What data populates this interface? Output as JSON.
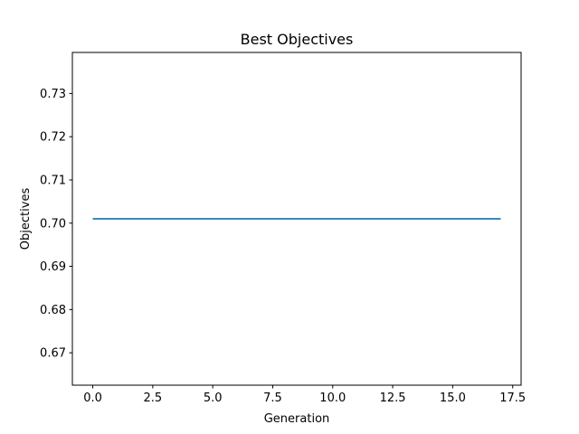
{
  "chart_data": {
    "type": "line",
    "title": "Best Objectives",
    "xlabel": "Generation",
    "ylabel": "Objectives",
    "xlim": [
      -0.85,
      17.85
    ],
    "ylim": [
      0.6625,
      0.7395
    ],
    "xticks": [
      0.0,
      2.5,
      5.0,
      7.5,
      10.0,
      12.5,
      15.0,
      17.5
    ],
    "xtick_labels": [
      "0.0",
      "2.5",
      "5.0",
      "7.5",
      "10.0",
      "12.5",
      "15.0",
      "17.5"
    ],
    "yticks": [
      0.67,
      0.68,
      0.69,
      0.7,
      0.71,
      0.72,
      0.73
    ],
    "ytick_labels": [
      "0.67",
      "0.68",
      "0.69",
      "0.70",
      "0.71",
      "0.72",
      "0.73"
    ],
    "grid": false,
    "series": [
      {
        "color": "#1f77b4",
        "x": [
          0,
          1,
          2,
          3,
          4,
          5,
          6,
          7,
          8,
          9,
          10,
          11,
          12,
          13,
          14,
          15,
          16,
          17
        ],
        "y": [
          0.701,
          0.701,
          0.701,
          0.701,
          0.701,
          0.701,
          0.701,
          0.701,
          0.701,
          0.701,
          0.701,
          0.701,
          0.701,
          0.701,
          0.701,
          0.701,
          0.701,
          0.701
        ]
      }
    ]
  }
}
